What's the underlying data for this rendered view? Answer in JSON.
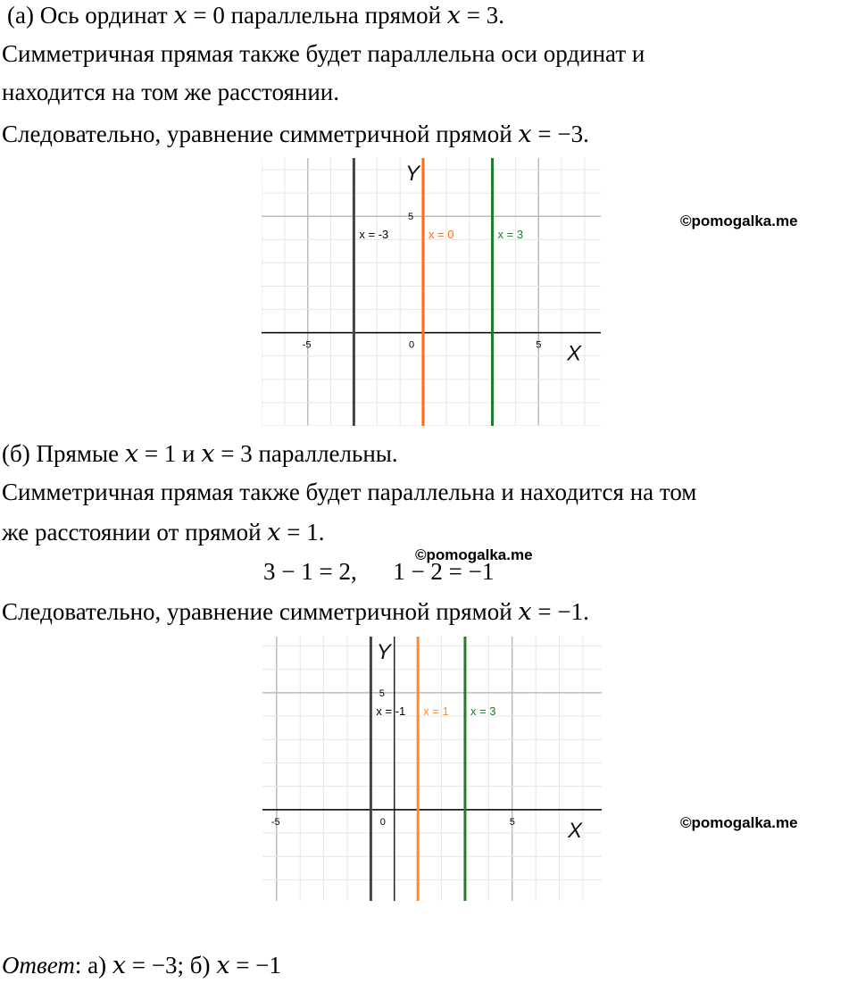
{
  "part_a": {
    "line1": "(а) Ось ординат 𝑥 = 0 параллельна прямой 𝑥 = 3.",
    "line2": "Симметричная прямая также будет параллельна оси ординат и",
    "line3": "находится на том же расстоянии.",
    "line4": "Следовательно, уравнение симметричной прямой 𝑥 = −3."
  },
  "part_b": {
    "line1": "(б) Прямые 𝑥 = 1 и 𝑥 = 3 параллельны.",
    "line2": "Симметричная прямая также будет параллельна и находится на том",
    "line3": "же расстоянии от прямой 𝑥 = 1.",
    "formula": "3 − 1 = 2,      1 − 2 = −1",
    "line4": "Следовательно, уравнение симметричной прямой 𝑥 = −1."
  },
  "answer": {
    "label": "Ответ",
    "text": ": а) 𝑥 = −3; б) 𝑥 = −1"
  },
  "watermark": "©pomogalka.me",
  "chart_data": [
    {
      "type": "line",
      "xlabel": "X",
      "ylabel": "Y",
      "xlim": [
        -7,
        7.7
      ],
      "ylim": [
        -4,
        7.5
      ],
      "x_ticks": [
        "-5",
        "0",
        "5"
      ],
      "y_ticks": [
        "5"
      ],
      "grid": true,
      "y_axis_at": 0,
      "series": [
        {
          "name": "x = -3",
          "x": -3,
          "color": "#444444"
        },
        {
          "name": "x = 0",
          "x": 0,
          "color": "#ff6a13"
        },
        {
          "name": "x = 3",
          "x": 3,
          "color": "#1e7e2c"
        }
      ]
    },
    {
      "type": "line",
      "xlabel": "X",
      "ylabel": "Y",
      "xlim": [
        -5.6,
        8.8
      ],
      "ylim": [
        -3.9,
        7.4
      ],
      "x_ticks": [
        "-5",
        "0",
        "5"
      ],
      "y_ticks": [
        "5"
      ],
      "grid": true,
      "y_axis_at": 0,
      "series": [
        {
          "name": "x = -1",
          "x": -1,
          "color": "#444444"
        },
        {
          "name": "x = 1",
          "x": 1,
          "color": "#ff8c2e"
        },
        {
          "name": "x = 3",
          "x": 3,
          "color": "#1e7e2c"
        }
      ]
    }
  ]
}
